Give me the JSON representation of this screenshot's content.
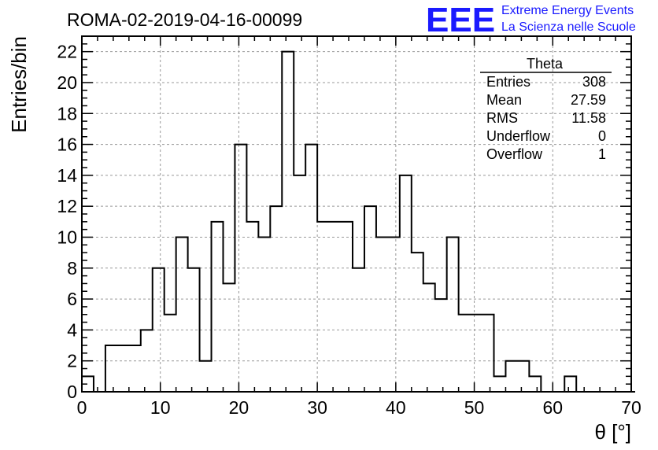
{
  "header": {
    "run_title": "ROMA-02-2019-04-16-00099",
    "logo_text": "EEE",
    "logo_line1": "Extreme Energy Events",
    "logo_line2": "La Scienza nelle Scuole"
  },
  "stats": {
    "title": "Theta",
    "rows": [
      {
        "label": "Entries",
        "value": "308"
      },
      {
        "label": "Mean",
        "value": "27.59"
      },
      {
        "label": "RMS",
        "value": "11.58"
      },
      {
        "label": "Underflow",
        "value": "0"
      },
      {
        "label": "Overflow",
        "value": "1"
      }
    ]
  },
  "colors": {
    "logo": "#1a1aff",
    "grid": "#999999",
    "line": "#000000"
  },
  "chart_data": {
    "type": "bar",
    "style": "step-histogram",
    "xlabel": "θ [°]",
    "ylabel": "Entries/bin",
    "xlim": [
      0,
      70
    ],
    "ylim": [
      0,
      23
    ],
    "grid": true,
    "bin_width": 1.5,
    "x_ticks": [
      "0",
      "10",
      "20",
      "30",
      "40",
      "50",
      "60",
      "70"
    ],
    "y_ticks": [
      "0",
      "2",
      "4",
      "6",
      "8",
      "10",
      "12",
      "14",
      "16",
      "18",
      "20",
      "22"
    ],
    "x_tick_values": [
      0,
      10,
      20,
      30,
      40,
      50,
      60,
      70
    ],
    "y_tick_values": [
      0,
      2,
      4,
      6,
      8,
      10,
      12,
      14,
      16,
      18,
      20,
      22
    ],
    "values": [
      1,
      0,
      3,
      3,
      3,
      4,
      8,
      5,
      10,
      8,
      2,
      11,
      7,
      16,
      11,
      10,
      12,
      22,
      14,
      16,
      11,
      11,
      11,
      8,
      12,
      10,
      10,
      14,
      9,
      7,
      6,
      10,
      5,
      5,
      5,
      1,
      2,
      2,
      1,
      0,
      0,
      1,
      0,
      0,
      0,
      0,
      0
    ]
  }
}
